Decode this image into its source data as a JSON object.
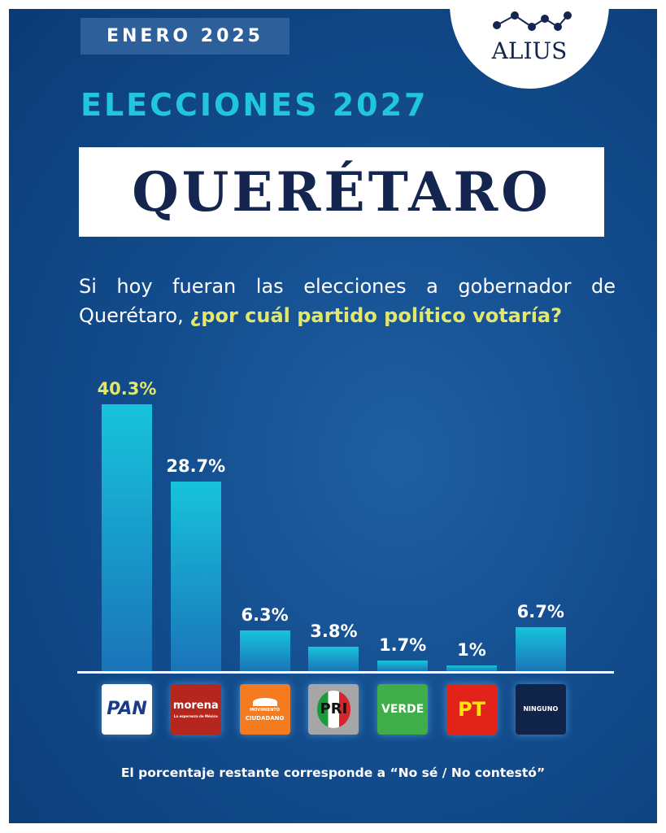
{
  "header": {
    "date": "ENERO 2025",
    "brand": "ALIUS",
    "subtitle": "ELECCIONES 2027",
    "title": "QUERÉTARO"
  },
  "question": {
    "part1": "Si hoy fueran las elecciones a gobernador de Querétaro, ",
    "highlight": "¿por cuál partido político votaría?"
  },
  "note": "El porcentaje restante corresponde a “No sé / No contestó”",
  "colors": {
    "background": "#134d8e",
    "bar": "#17c3dc",
    "highlight_label": "#e3e86a",
    "accent": "#1fc6dc"
  },
  "chart_data": {
    "type": "bar",
    "categories": [
      "PAN",
      "morena",
      "MOVIMIENTO CIUDADANO",
      "PRI",
      "VERDE",
      "PT",
      "NINGUNO"
    ],
    "values": [
      40.3,
      28.7,
      6.3,
      3.8,
      1.7,
      1,
      6.7
    ],
    "labels": [
      "40.3%",
      "28.7%",
      "6.3%",
      "3.8%",
      "1.7%",
      "1%",
      "6.7%"
    ],
    "logos": [
      {
        "text": "PAN",
        "bg": "#ffffff",
        "fg": "#1b3a8c"
      },
      {
        "text": "morena",
        "sub": "La esperanza de México",
        "bg": "#b5261e",
        "fg": "#ffffff"
      },
      {
        "text": "CIUDADANO",
        "sub": "MOVIMIENTO",
        "bg": "#f47b20",
        "fg": "#ffffff"
      },
      {
        "text": "PRI",
        "bg": "#a6a6a6",
        "fg": "#111111"
      },
      {
        "text": "VERDE",
        "bg": "#3fae49",
        "fg": "#ffffff"
      },
      {
        "text": "PT",
        "bg": "#e2231a",
        "fg": "#ffe600"
      },
      {
        "text": "NINGUNO",
        "bg": "#0f2448",
        "fg": "#ffffff"
      }
    ],
    "ylim": [
      0,
      45
    ],
    "grid": false
  }
}
